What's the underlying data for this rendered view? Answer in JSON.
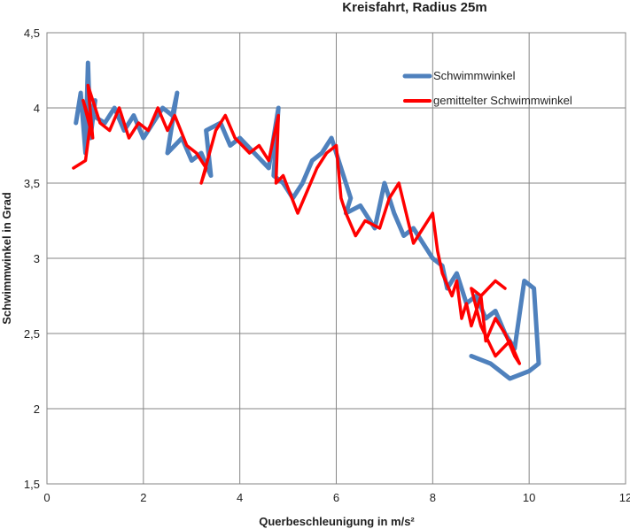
{
  "chart_data": {
    "type": "line",
    "title": "Kreisfahrt, Radius 25m",
    "xlabel": "Querbeschleunigung in m/s²",
    "ylabel": "Schwimmwinkel in Grad",
    "xlim": [
      0,
      12
    ],
    "ylim": [
      1.5,
      4.5
    ],
    "x_ticks": [
      "0",
      "2",
      "4",
      "6",
      "8",
      "10",
      "12"
    ],
    "y_ticks": [
      "1,5",
      "2",
      "2,5",
      "3",
      "3,5",
      "4",
      "4,5"
    ],
    "grid": true,
    "legend_position": "top-right",
    "series": [
      {
        "name": "Schwimmwinkel",
        "color": "#4f81bd",
        "x": [
          0.6,
          0.7,
          0.8,
          0.85,
          0.9,
          1.0,
          0.8,
          0.95,
          1.2,
          1.4,
          1.6,
          1.8,
          2.0,
          2.2,
          2.4,
          2.6,
          2.7,
          2.5,
          2.8,
          3.0,
          3.2,
          3.4,
          3.3,
          3.6,
          3.8,
          4.0,
          4.3,
          4.6,
          4.8,
          4.7,
          4.9,
          5.1,
          5.3,
          5.5,
          5.7,
          5.9,
          6.1,
          6.3,
          6.2,
          6.5,
          6.8,
          7.0,
          7.2,
          7.4,
          7.6,
          7.8,
          8.0,
          8.2,
          8.3,
          8.5,
          8.7,
          8.9,
          9.1,
          9.3,
          9.5,
          9.7,
          9.9,
          10.1,
          10.2,
          10.0,
          9.6,
          9.2,
          8.8
        ],
        "y": [
          3.9,
          4.1,
          3.7,
          4.3,
          3.8,
          4.05,
          3.85,
          3.95,
          3.9,
          4.0,
          3.85,
          3.95,
          3.8,
          3.9,
          4.0,
          3.95,
          4.1,
          3.7,
          3.8,
          3.65,
          3.7,
          3.55,
          3.85,
          3.9,
          3.75,
          3.8,
          3.7,
          3.6,
          4.0,
          3.55,
          3.5,
          3.4,
          3.5,
          3.65,
          3.7,
          3.8,
          3.6,
          3.4,
          3.3,
          3.35,
          3.2,
          3.5,
          3.3,
          3.15,
          3.2,
          3.1,
          3.0,
          2.95,
          2.8,
          2.9,
          2.7,
          2.75,
          2.6,
          2.65,
          2.5,
          2.4,
          2.85,
          2.8,
          2.3,
          2.25,
          2.2,
          2.3,
          2.35
        ]
      },
      {
        "name": "gemittelter Schwimmwinkel",
        "color": "#ff0000",
        "x": [
          0.55,
          0.8,
          0.9,
          0.75,
          0.95,
          0.85,
          1.1,
          1.3,
          1.5,
          1.7,
          1.9,
          2.1,
          2.3,
          2.5,
          2.65,
          2.9,
          3.1,
          3.3,
          3.2,
          3.5,
          3.7,
          3.9,
          4.2,
          4.4,
          4.6,
          4.8,
          4.75,
          4.9,
          5.2,
          5.4,
          5.6,
          5.8,
          6.0,
          6.1,
          6.2,
          6.4,
          6.6,
          6.9,
          7.1,
          7.3,
          7.45,
          7.6,
          7.8,
          8.0,
          8.1,
          8.2,
          8.4,
          8.5,
          8.6,
          8.7,
          8.8,
          9.0,
          9.1,
          9.3,
          9.5,
          9.7,
          9.8,
          9.6,
          9.3,
          9.0,
          8.8,
          9.0,
          9.3,
          9.5
        ],
        "y": [
          3.6,
          3.65,
          3.9,
          4.05,
          3.8,
          4.15,
          3.9,
          3.85,
          4.0,
          3.8,
          3.9,
          3.85,
          4.0,
          3.85,
          3.95,
          3.75,
          3.7,
          3.6,
          3.5,
          3.85,
          3.95,
          3.8,
          3.7,
          3.75,
          3.65,
          3.95,
          3.5,
          3.55,
          3.3,
          3.45,
          3.6,
          3.7,
          3.75,
          3.4,
          3.3,
          3.15,
          3.25,
          3.2,
          3.4,
          3.5,
          3.3,
          3.1,
          3.2,
          3.3,
          3.05,
          2.9,
          2.75,
          2.85,
          2.6,
          2.7,
          2.55,
          2.75,
          2.45,
          2.6,
          2.5,
          2.35,
          2.3,
          2.45,
          2.35,
          2.55,
          2.8,
          2.75,
          2.85,
          2.8
        ]
      }
    ]
  }
}
